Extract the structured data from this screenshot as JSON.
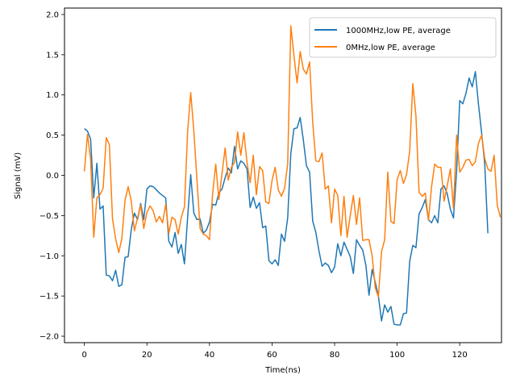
{
  "chart_data": {
    "type": "line",
    "xlabel": "Time(ns)",
    "ylabel": "Signal (mV)",
    "xlim": [
      -6.35,
      133.35
    ],
    "ylim": [
      -2.08,
      2.08
    ],
    "xticks": [
      0,
      20,
      40,
      60,
      80,
      100,
      120
    ],
    "yticks": [
      -2.0,
      -1.5,
      -1.0,
      -0.5,
      0.0,
      0.5,
      1.0,
      1.5,
      2.0
    ],
    "xtick_labels": [
      "0",
      "20",
      "40",
      "60",
      "80",
      "100",
      "120"
    ],
    "ytick_labels": [
      "−2.0",
      "−1.5",
      "−1.0",
      "−0.5",
      "0.0",
      "0.5",
      "1.0",
      "1.5",
      "2.0"
    ],
    "grid": false,
    "legend_position": "top-right",
    "series": [
      {
        "name": "1000MHz,low PE, average",
        "color": "#1f77b4",
        "values": [
          0.58,
          0.55,
          0.45,
          -0.28,
          0.15,
          -0.42,
          -0.38,
          -1.24,
          -1.25,
          -1.31,
          -1.18,
          -1.38,
          -1.36,
          -1.02,
          -1.01,
          -0.67,
          -0.47,
          -0.55,
          -0.35,
          -0.55,
          -0.17,
          -0.13,
          -0.14,
          -0.18,
          -0.22,
          -0.25,
          -0.28,
          -0.82,
          -0.89,
          -0.71,
          -0.97,
          -0.86,
          -1.1,
          -0.53,
          0.01,
          -0.47,
          -0.55,
          -0.54,
          -0.72,
          -0.68,
          -0.58,
          -0.36,
          -0.37,
          -0.22,
          -0.17,
          -0.03,
          0.09,
          0.03,
          0.36,
          0.08,
          0.18,
          0.15,
          0.08,
          -0.4,
          -0.27,
          -0.41,
          -0.34,
          -0.65,
          -0.63,
          -1.06,
          -1.1,
          -1.05,
          -1.12,
          -0.73,
          -0.82,
          -0.53,
          0.27,
          0.58,
          0.59,
          0.72,
          0.44,
          0.12,
          0.04,
          -0.57,
          -0.71,
          -0.94,
          -1.13,
          -1.09,
          -1.12,
          -1.21,
          -1.14,
          -0.85,
          -1.0,
          -0.83,
          -0.92,
          -1.01,
          -1.22,
          -0.8,
          -0.87,
          -0.93,
          -1.12,
          -1.49,
          -1.17,
          -1.33,
          -1.5,
          -1.81,
          -1.61,
          -1.7,
          -1.63,
          -1.85,
          -1.86,
          -1.86,
          -1.72,
          -1.71,
          -1.07,
          -0.87,
          -0.9,
          -0.48,
          -0.4,
          -0.3,
          -0.55,
          -0.59,
          -0.5,
          -0.59,
          -0.17,
          -0.13,
          -0.23,
          -0.42,
          -0.53,
          0.05,
          0.93,
          0.89,
          1.02,
          1.21,
          1.1,
          1.29,
          0.88,
          0.53,
          0.14,
          -0.72
        ]
      },
      {
        "name": "0MHz,low PE, average",
        "color": "#ff7f0e",
        "values": [
          0.05,
          0.51,
          0.2,
          -0.77,
          -0.28,
          -0.24,
          -0.16,
          0.47,
          0.38,
          -0.54,
          -0.79,
          -0.96,
          -0.78,
          -0.31,
          -0.14,
          -0.32,
          -0.69,
          -0.53,
          -0.37,
          -0.66,
          -0.46,
          -0.38,
          -0.44,
          -0.58,
          -0.51,
          -0.59,
          -0.36,
          -0.72,
          -0.52,
          -0.55,
          -0.73,
          -0.52,
          -0.39,
          0.54,
          1.03,
          0.55,
          -0.06,
          -0.66,
          -0.73,
          -0.75,
          -0.8,
          -0.23,
          0.14,
          -0.3,
          0.02,
          0.34,
          -0.06,
          0.1,
          0.16,
          0.54,
          0.25,
          0.53,
          0.16,
          -0.09,
          0.25,
          -0.24,
          0.11,
          0.06,
          -0.33,
          -0.35,
          -0.06,
          0.1,
          -0.18,
          -0.26,
          -0.16,
          0.14,
          1.86,
          1.49,
          1.15,
          1.54,
          1.32,
          1.26,
          1.41,
          0.66,
          0.18,
          0.17,
          0.28,
          -0.17,
          -0.13,
          -0.59,
          -0.17,
          -0.25,
          -0.75,
          -0.26,
          -0.77,
          -0.5,
          -0.25,
          -0.61,
          -0.28,
          -0.81,
          -0.8,
          -0.8,
          -1.0,
          -1.4,
          -1.51,
          -0.95,
          -0.8,
          0.04,
          -0.57,
          -0.6,
          -0.05,
          0.06,
          -0.1,
          0.01,
          0.3,
          1.14,
          0.74,
          -0.21,
          -0.26,
          -0.22,
          -0.56,
          -0.14,
          0.14,
          0.1,
          0.1,
          -0.32,
          -0.13,
          0.08,
          -0.41,
          0.5,
          0.04,
          0.1,
          0.19,
          0.2,
          0.12,
          0.17,
          0.4,
          0.5,
          0.21,
          0.08,
          0.05,
          0.25,
          -0.37,
          -0.52
        ]
      }
    ]
  }
}
